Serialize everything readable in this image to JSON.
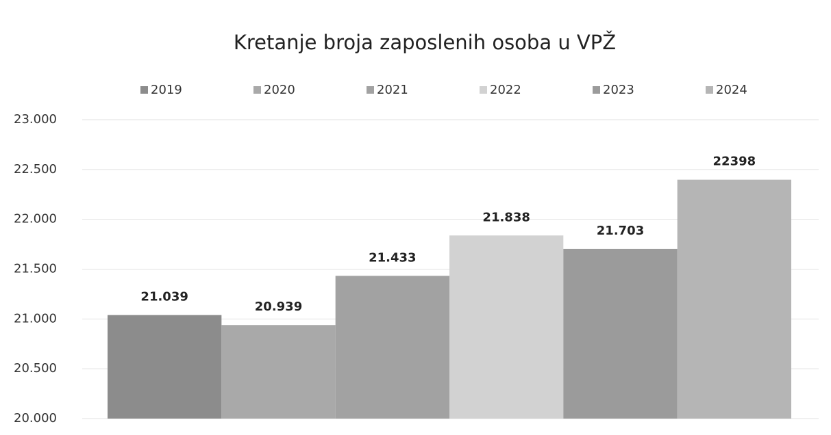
{
  "chart_data": {
    "type": "bar",
    "title": "Kretanje broja zaposlenih osoba u VPŽ",
    "series": [
      {
        "name": "2019",
        "color": "#8c8c8c",
        "values": [
          21039
        ],
        "value_labels": [
          "21.039"
        ]
      },
      {
        "name": "2020",
        "color": "#a9a9a9",
        "values": [
          20939
        ],
        "value_labels": [
          "20.939"
        ]
      },
      {
        "name": "2021",
        "color": "#a2a2a2",
        "values": [
          21433
        ],
        "value_labels": [
          "21.433"
        ]
      },
      {
        "name": "2022",
        "color": "#d2d2d2",
        "values": [
          21838
        ],
        "value_labels": [
          "21.838"
        ]
      },
      {
        "name": "2023",
        "color": "#9b9b9b",
        "values": [
          21703
        ],
        "value_labels": [
          "21.703"
        ]
      },
      {
        "name": "2024",
        "color": "#b5b5b5",
        "values": [
          22398
        ],
        "value_labels": [
          "22398"
        ]
      }
    ],
    "ylim": [
      20000,
      23000
    ],
    "yticks": [
      {
        "value": 20000,
        "label": "20.000"
      },
      {
        "value": 20500,
        "label": "20.500"
      },
      {
        "value": 21000,
        "label": "21.000"
      },
      {
        "value": 21500,
        "label": "21.500"
      },
      {
        "value": 22000,
        "label": "22.000"
      },
      {
        "value": 22500,
        "label": "22.500"
      },
      {
        "value": 23000,
        "label": "23.000"
      }
    ],
    "grid": true,
    "legend": "top"
  }
}
